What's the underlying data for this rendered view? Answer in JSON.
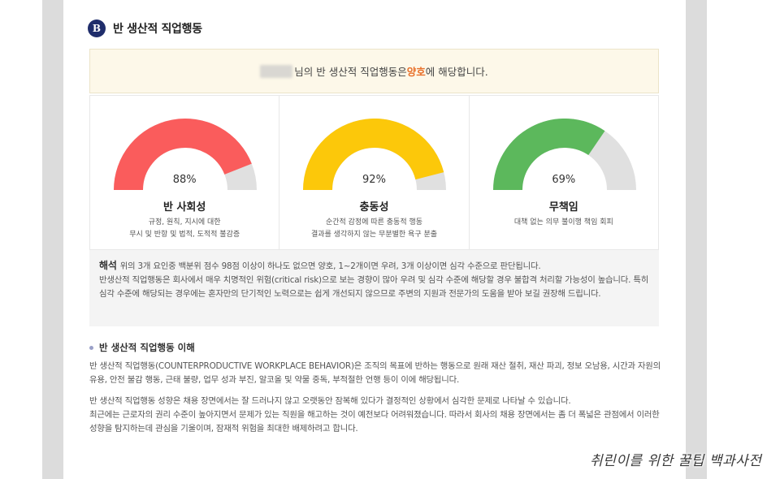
{
  "section": {
    "badge": "B",
    "title": "반 생산적 직업행동"
  },
  "result": {
    "suffix_before": "님의 반 생산적 직업행동은 ",
    "result_word": "양호",
    "suffix_after": "에 해당합니다."
  },
  "gauges": [
    {
      "percent_label": "88%",
      "value": 88,
      "color": "#fa5c5c",
      "label": "반 사회성",
      "desc_line1": "규정, 원칙, 지시에 대한",
      "desc_line2": "무시 및 반항 및 법적, 도적적 불감증"
    },
    {
      "percent_label": "92%",
      "value": 92,
      "color": "#fcc80a",
      "label": "충동성",
      "desc_line1": "순간적 감정에 따른 충동적 행동",
      "desc_line2": "결과를 생각하지 않는 무분별한 욕구 분출"
    },
    {
      "percent_label": "69%",
      "value": 69,
      "color": "#5cb85c",
      "label": "무책임",
      "desc_line1": "대책 없는 의무 불이행 책임 회피",
      "desc_line2": ""
    }
  ],
  "gauge_track_color": "#e0e0e0",
  "interpretation": {
    "label": "해석",
    "line1": "위의 3개 요인중 백분위 점수 98점 이상이 하나도 없으면 양호, 1~2개이면 우려, 3개 이상이면 심각 수준으로 판단됩니다.",
    "line2": "반생산적 직업행동은 회사에서 매우 치명적인 위험(critical risk)으로 보는 경향이 많아 우려 및 심각 수준에 해당할 경우 불합격 처리할 가능성이 높습니다. 특히 심각 수준에 해당되는 경우에는 혼자만의 단기적인 노력으로는 쉽게 개선되지 않으므로 주변의 지원과 전문가의 도움을 받아 보길 권장해 드립니다."
  },
  "understanding": {
    "title": "반 생산적 직업행동 이해",
    "para1": "반 생산적 직업행동(COUNTERPRODUCTIVE WORKPLACE BEHAVIOR)은 조직의 목표에 반하는 행동으로 원래 재산 절취, 재산 파괴, 정보 오남용, 시간과 자원의 유용, 안전 불감 행동, 근태 불량, 업무 성과 부진, 알코올 및 약물 중독, 부적절한 언행 등이 이에 해당됩니다.",
    "para2": "반 생산적 직업행동 성향은 채용 장면에서는 잘 드러나지 않고 오랫동안 잠복해 있다가 결정적인 상황에서 심각한 문제로 나타날 수 있습니다.",
    "para3": "최근에는 근로자의 권리 수준이 높아지면서 문제가 있는 직원을 해고하는 것이 예전보다 어려워졌습니다. 따라서 회사의 채용 장면에서는 좀 더 폭넓은 관점에서 이러한 성향을 탐지하는데 관심을 기울이며, 잠재적 위험을 최대한 배제하려고 합니다."
  },
  "watermark": "취린이를 위한 꿀팁 백과사전"
}
